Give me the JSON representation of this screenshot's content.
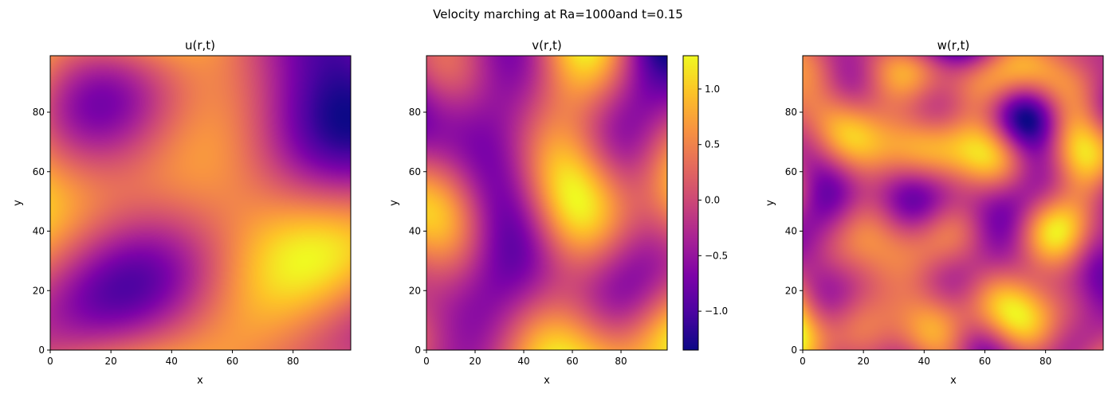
{
  "figure": {
    "suptitle": "Velocity marching at Ra=1000and t=0.15"
  },
  "colormap": "plasma",
  "chart_data": [
    {
      "type": "heatmap",
      "title": "u(r,t)",
      "xlabel": "x",
      "ylabel": "y",
      "xlim": [
        0,
        99
      ],
      "ylim": [
        0,
        99
      ],
      "xticks": [
        "0",
        "20",
        "40",
        "60",
        "80"
      ],
      "yticks": [
        "0",
        "20",
        "40",
        "60",
        "80"
      ],
      "seed": 11,
      "wavelength": "long",
      "grid": false
    },
    {
      "type": "heatmap",
      "title": "v(r,t)",
      "xlabel": "x",
      "ylabel": "y",
      "xlim": [
        0,
        99
      ],
      "ylim": [
        0,
        99
      ],
      "xticks": [
        "0",
        "20",
        "40",
        "60",
        "80"
      ],
      "yticks": [
        "0",
        "20",
        "40",
        "60",
        "80"
      ],
      "seed": 27,
      "wavelength": "medium",
      "grid": false,
      "colorbar": {
        "range": [
          -1.35,
          1.3
        ],
        "ticks": [
          1.0,
          0.5,
          0.0,
          -0.5,
          -1.0
        ],
        "tick_labels": [
          "1.0",
          "0.5",
          "0.0",
          "−0.5",
          "−1.0"
        ]
      }
    },
    {
      "type": "heatmap",
      "title": "w(r,t)",
      "xlabel": "x",
      "ylabel": "y",
      "xlim": [
        0,
        99
      ],
      "ylim": [
        0,
        99
      ],
      "xticks": [
        "0",
        "20",
        "40",
        "60",
        "80"
      ],
      "yticks": [
        "0",
        "20",
        "40",
        "60",
        "80"
      ],
      "seed": 53,
      "wavelength": "short",
      "grid": false
    }
  ]
}
